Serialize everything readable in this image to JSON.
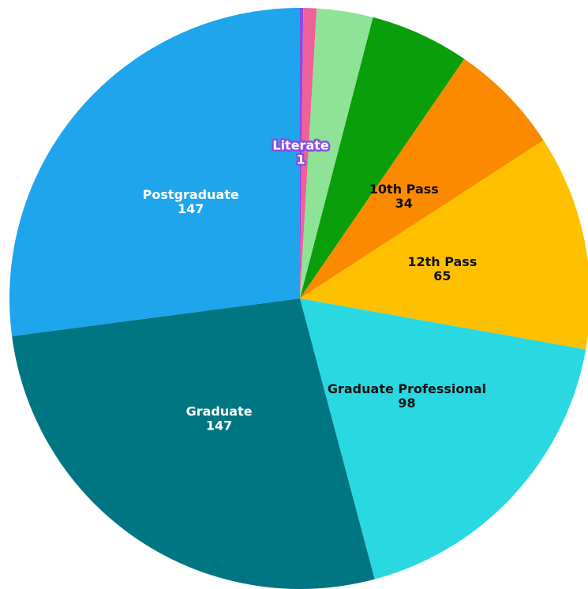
{
  "chart_data": {
    "type": "pie",
    "categories": [
      "Literate",
      null,
      null,
      null,
      "10th Pass",
      "12th Pass",
      "Graduate Professional",
      "Graduate",
      "Postgraduate"
    ],
    "values": [
      1,
      4,
      17,
      30,
      34,
      65,
      98,
      147,
      147
    ],
    "colors": [
      "#8a4be6",
      "#f0609a",
      "#8ee396",
      "#0a9e0a",
      "#fb8a00",
      "#ffc000",
      "#2ad8e2",
      "#007682",
      "#1ea5ec"
    ]
  }
}
